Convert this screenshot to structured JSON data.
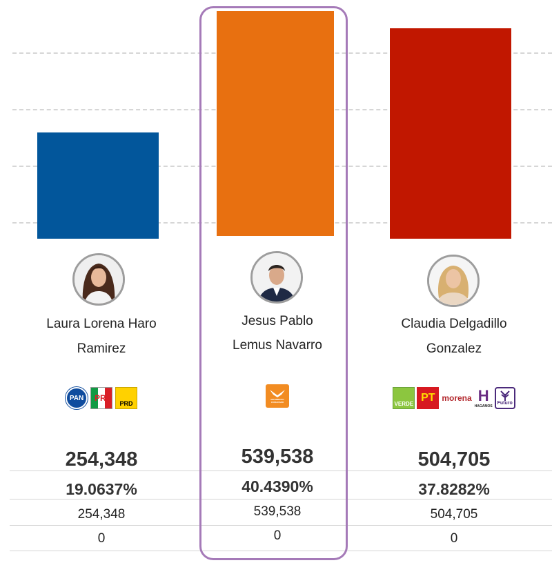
{
  "chart_data": {
    "type": "bar",
    "categories": [
      "Laura Lorena Haro Ramirez",
      "Jesus Pablo Lemus Navarro",
      "Claudia Delgadillo Gonzalez"
    ],
    "values": [
      254348,
      539538,
      504705
    ],
    "ylim": [
      0,
      560000
    ],
    "grid": true,
    "highlighted": 1,
    "colors": [
      "#02569b",
      "#e87010",
      "#c11700"
    ]
  },
  "candidates": [
    {
      "name_line1": "Laura Lorena Haro",
      "name_line2": "Ramirez",
      "votes": "254,348",
      "percent": "19.0637%",
      "votes_detail": "254,348",
      "extra": "0",
      "parties": [
        {
          "icon": "pan-logo",
          "label": "PAN"
        },
        {
          "icon": "pri-logo",
          "label": "PRI"
        },
        {
          "icon": "prd-logo",
          "label": "PRD"
        }
      ]
    },
    {
      "name_line1": "Jesus Pablo",
      "name_line2": "Lemus Navarro",
      "votes": "539,538",
      "percent": "40.4390%",
      "votes_detail": "539,538",
      "extra": "0",
      "parties": [
        {
          "icon": "movimiento-ciudadano-logo",
          "label": "MOVIMIENTO CIUDADANO"
        }
      ]
    },
    {
      "name_line1": "Claudia Delgadillo",
      "name_line2": "Gonzalez",
      "votes": "504,705",
      "percent": "37.8282%",
      "votes_detail": "504,705",
      "extra": "0",
      "parties": [
        {
          "icon": "verde-logo",
          "label": "VERDE"
        },
        {
          "icon": "pt-logo",
          "label": "PT"
        },
        {
          "icon": "morena-logo",
          "label": "morena"
        },
        {
          "icon": "hagamos-logo",
          "label": "HAGAMOS"
        },
        {
          "icon": "futuro-logo",
          "label": "Futuro"
        }
      ]
    }
  ]
}
